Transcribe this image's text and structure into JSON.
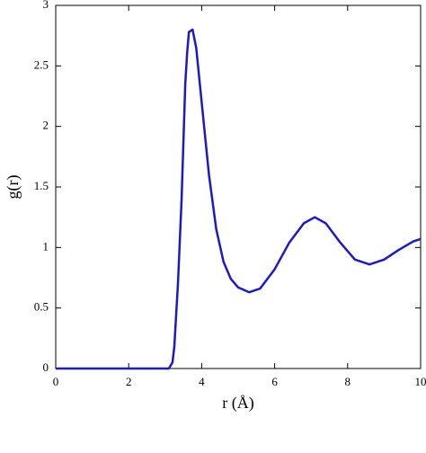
{
  "chart_data": {
    "type": "line",
    "xlabel": "r (Å)",
    "ylabel": "g(r)",
    "color": "#1a1acc",
    "x": [
      0,
      1,
      2,
      3,
      3.1,
      3.2,
      3.25,
      3.35,
      3.45,
      3.55,
      3.6,
      3.65,
      3.75,
      3.85,
      4.0,
      4.2,
      4.4,
      4.6,
      4.8,
      5.0,
      5.3,
      5.6,
      6.0,
      6.4,
      6.8,
      7.1,
      7.4,
      7.8,
      8.2,
      8.6,
      9.0,
      9.4,
      9.8,
      10
    ],
    "values": [
      0,
      0,
      0,
      0,
      0,
      0.05,
      0.18,
      0.7,
      1.4,
      2.35,
      2.6,
      2.78,
      2.8,
      2.65,
      2.2,
      1.6,
      1.15,
      0.88,
      0.74,
      0.67,
      0.63,
      0.66,
      0.82,
      1.04,
      1.2,
      1.25,
      1.2,
      1.04,
      0.9,
      0.86,
      0.9,
      0.98,
      1.05,
      1.07
    ],
    "xlim": [
      0,
      10
    ],
    "ylim": [
      0,
      3
    ],
    "xticks": [
      0,
      2,
      4,
      6,
      8,
      10
    ],
    "yticks": [
      0,
      0.5,
      1,
      1.5,
      2,
      2.5,
      3
    ]
  }
}
